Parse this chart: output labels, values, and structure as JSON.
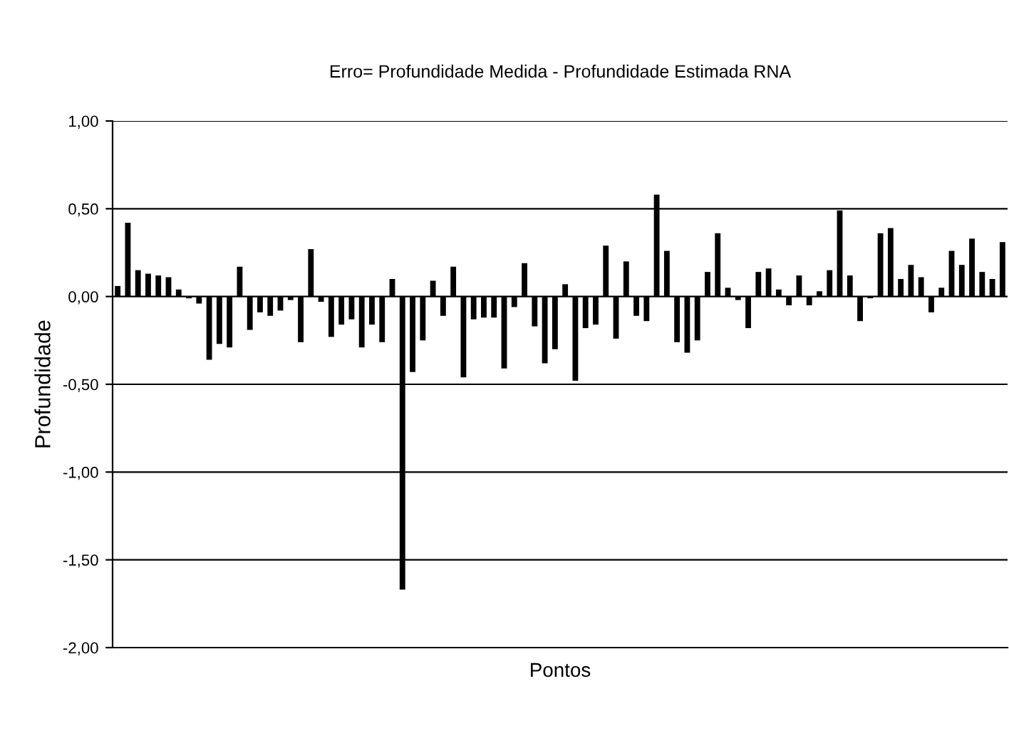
{
  "chart_data": {
    "type": "bar",
    "title": "Erro= Profundidade Medida - Profundidade Estimada RNA",
    "xlabel": "Pontos",
    "ylabel": "Profundidade",
    "categories": [
      null,
      null,
      null,
      null,
      null,
      null,
      null,
      null,
      null,
      null,
      null,
      null,
      null,
      null,
      null,
      null,
      null,
      null,
      null,
      null,
      null,
      null,
      null,
      null,
      null,
      null,
      null,
      null,
      null,
      null,
      null,
      null,
      null,
      null,
      null,
      null,
      null,
      null,
      null,
      null,
      null,
      null,
      null,
      null,
      null,
      null,
      null,
      null,
      null,
      null,
      null,
      null,
      null,
      null,
      null,
      null,
      null,
      null,
      null,
      null,
      null,
      null,
      null,
      null,
      null,
      null,
      null,
      null,
      null,
      null,
      null,
      null,
      null,
      null,
      null,
      null,
      null,
      null,
      null,
      null,
      null,
      null,
      null,
      null,
      null,
      null,
      null,
      null
    ],
    "values": [
      0.06,
      0.42,
      0.15,
      0.13,
      0.12,
      0.11,
      0.04,
      -0.01,
      -0.04,
      -0.36,
      -0.27,
      -0.29,
      0.17,
      -0.19,
      -0.09,
      -0.11,
      -0.08,
      -0.02,
      -0.26,
      0.27,
      -0.03,
      -0.23,
      -0.16,
      -0.13,
      -0.29,
      -0.16,
      -0.26,
      0.1,
      -1.67,
      -0.43,
      -0.25,
      0.09,
      -0.11,
      0.17,
      -0.46,
      -0.13,
      -0.12,
      -0.12,
      -0.41,
      -0.06,
      0.19,
      -0.17,
      -0.38,
      -0.3,
      0.07,
      -0.48,
      -0.18,
      -0.16,
      0.29,
      -0.24,
      0.2,
      -0.11,
      -0.14,
      0.58,
      0.26,
      -0.26,
      -0.32,
      -0.25,
      0.14,
      0.36,
      0.05,
      -0.02,
      -0.18,
      0.14,
      0.16,
      0.04,
      -0.05,
      0.12,
      -0.05,
      0.03,
      0.15,
      0.49,
      0.12,
      -0.14,
      -0.01,
      0.36,
      0.39,
      0.1,
      0.18,
      0.11,
      -0.09,
      0.05,
      0.26,
      0.18,
      0.33,
      0.14,
      0.1,
      0.31
    ],
    "color": "#000000",
    "ylim": [
      -2,
      1
    ],
    "yticks": [
      {
        "value": -2,
        "label": "-2,00"
      },
      {
        "value": -1.5,
        "label": "-1,50"
      },
      {
        "value": -1,
        "label": "-1,00"
      },
      {
        "value": -0.5,
        "label": "-0,50"
      },
      {
        "value": 0,
        "label": "0,00"
      },
      {
        "value": 0.5,
        "label": "0,50"
      },
      {
        "value": 1,
        "label": "1,00"
      }
    ],
    "grid": "y"
  }
}
